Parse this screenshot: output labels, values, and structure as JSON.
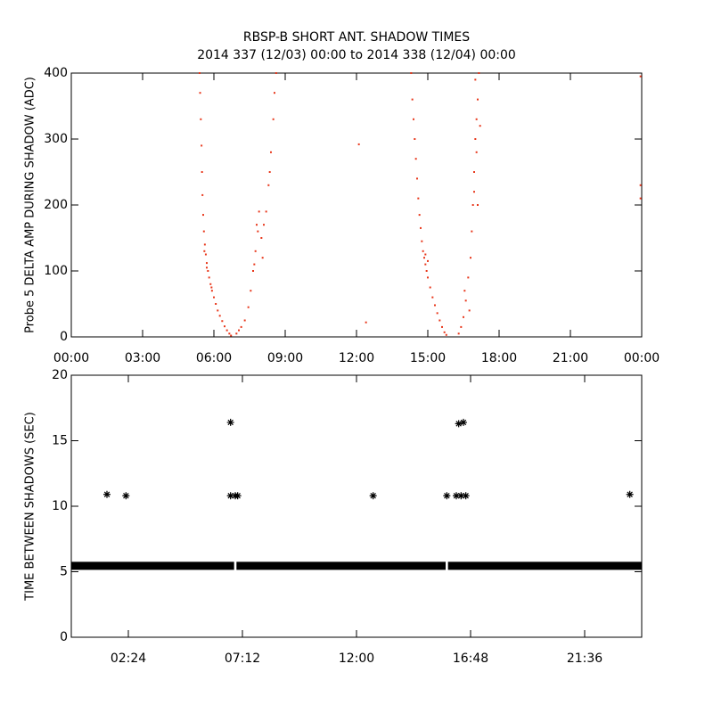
{
  "chart_data": [
    {
      "type": "scatter",
      "title": "RBSP-B SHORT ANT. SHADOW TIMES",
      "subtitle": "2014 337 (12/03) 00:00 to 2014 338 (12/04) 00:00",
      "ylabel": "Probe 5 DELTA AMP DURING SHADOW (ADC)",
      "color": "#e8361a",
      "xlim": [
        0,
        24
      ],
      "ylim": [
        0,
        400
      ],
      "xticks": [
        {
          "value": 0,
          "label": "00:00"
        },
        {
          "value": 3,
          "label": "03:00"
        },
        {
          "value": 6,
          "label": "06:00"
        },
        {
          "value": 9,
          "label": "09:00"
        },
        {
          "value": 12,
          "label": "12:00"
        },
        {
          "value": 15,
          "label": "15:00"
        },
        {
          "value": 18,
          "label": "18:00"
        },
        {
          "value": 21,
          "label": "21:00"
        },
        {
          "value": 24,
          "label": "00:00"
        }
      ],
      "yticks": [
        0,
        100,
        200,
        300,
        400
      ],
      "x": [
        5.4,
        5.42,
        5.45,
        5.48,
        5.5,
        5.52,
        5.55,
        5.58,
        5.62,
        5.66,
        5.7,
        5.75,
        5.8,
        5.86,
        5.92,
        6.0,
        6.08,
        6.16,
        6.25,
        6.35,
        6.45,
        6.55,
        6.65,
        6.72,
        5.7,
        5.6,
        5.9,
        6.95,
        7.05,
        7.15,
        7.3,
        7.45,
        7.55,
        7.65,
        7.75,
        7.8,
        7.9,
        8.0,
        8.1,
        8.2,
        8.3,
        8.35,
        8.4,
        8.5,
        8.55,
        8.62,
        7.7,
        8.05,
        7.85,
        14.3,
        14.35,
        14.4,
        14.45,
        14.5,
        14.55,
        14.6,
        14.65,
        14.7,
        14.75,
        14.8,
        14.85,
        14.9,
        14.95,
        15.0,
        15.1,
        15.2,
        15.3,
        15.4,
        15.5,
        15.6,
        15.7,
        15.78,
        15.0,
        14.9,
        16.3,
        16.4,
        16.5,
        16.55,
        16.6,
        16.7,
        16.75,
        16.8,
        16.85,
        16.9,
        16.95,
        17.0,
        17.05,
        17.1,
        17.15,
        17.2,
        16.95,
        17.05,
        17.1,
        17.0,
        12.1,
        12.4,
        23.95,
        23.95,
        23.95
      ],
      "values": [
        400,
        370,
        330,
        290,
        250,
        215,
        185,
        160,
        140,
        125,
        112,
        100,
        90,
        80,
        70,
        60,
        50,
        40,
        32,
        24,
        16,
        10,
        5,
        2,
        105,
        130,
        75,
        5,
        10,
        15,
        25,
        45,
        70,
        100,
        130,
        170,
        190,
        150,
        170,
        190,
        230,
        250,
        280,
        330,
        370,
        400,
        110,
        120,
        160,
        400,
        360,
        330,
        300,
        270,
        240,
        210,
        185,
        165,
        145,
        130,
        120,
        110,
        100,
        90,
        75,
        60,
        48,
        36,
        25,
        15,
        7,
        3,
        115,
        125,
        5,
        15,
        30,
        70,
        55,
        90,
        40,
        120,
        160,
        200,
        250,
        300,
        330,
        360,
        400,
        320,
        220,
        280,
        200,
        390,
        292,
        22,
        395,
        230,
        210
      ]
    },
    {
      "type": "scatter",
      "ylabel": "TIME BETWEEN SHADOWS (SEC)",
      "color": "#000000",
      "xlim": [
        0,
        24
      ],
      "ylim": [
        0,
        20
      ],
      "xticks": [
        {
          "value": 2.4,
          "label": "02:24"
        },
        {
          "value": 7.2,
          "label": "07:12"
        },
        {
          "value": 12,
          "label": "12:00"
        },
        {
          "value": 16.8,
          "label": "16:48"
        },
        {
          "value": 21.6,
          "label": "21:36"
        }
      ],
      "yticks": [
        0,
        5,
        10,
        15,
        20
      ],
      "x": [
        1.5,
        2.3,
        6.7,
        6.7,
        6.9,
        7.0,
        12.7,
        15.8,
        16.2,
        16.3,
        16.5,
        16.4,
        16.6,
        23.5
      ],
      "values": [
        10.9,
        10.8,
        16.4,
        10.8,
        10.8,
        10.8,
        10.8,
        10.8,
        10.8,
        16.3,
        16.4,
        10.8,
        10.8,
        10.9
      ],
      "band": {
        "x": [
          0,
          6.85,
          6.9,
          6.95,
          15.75,
          15.8,
          15.85,
          24
        ],
        "values": [
          5.45,
          5.45,
          null,
          5.45,
          5.45,
          null,
          5.45,
          5.45
        ]
      }
    }
  ]
}
